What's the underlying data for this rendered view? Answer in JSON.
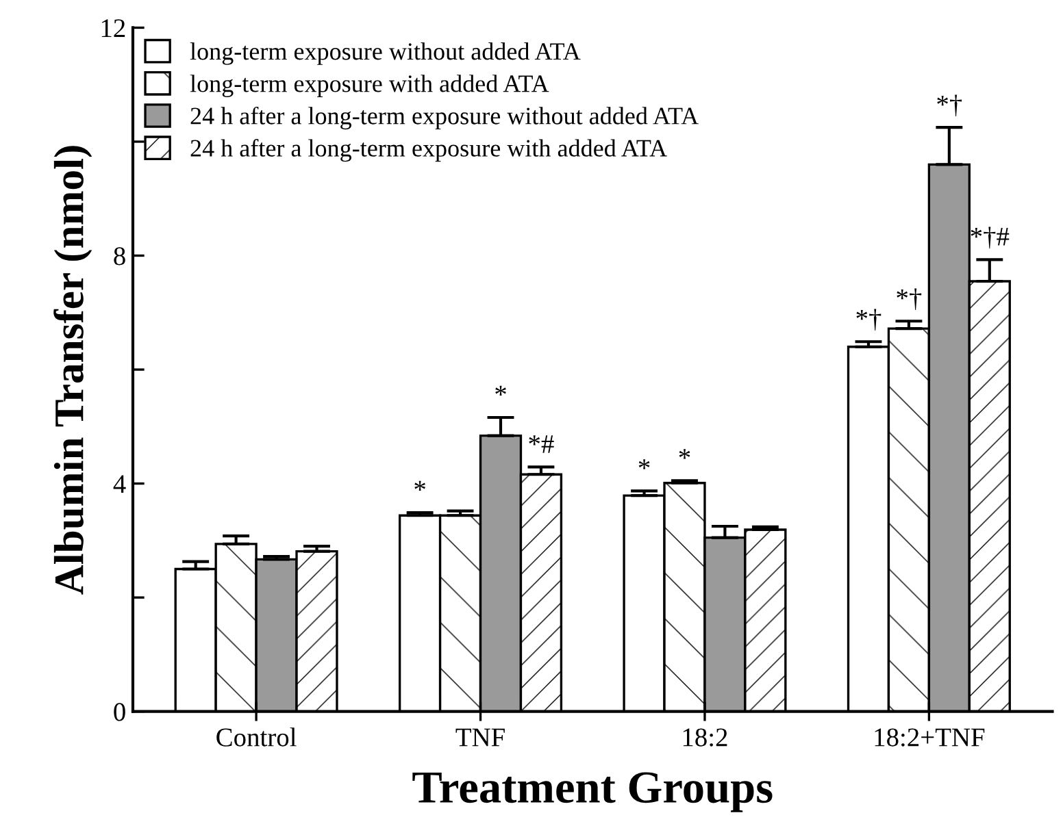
{
  "chart_data": {
    "type": "bar",
    "xlabel": "Treatment Groups",
    "ylabel": "Albumin Transfer (nmol)",
    "categories": [
      "Control",
      "TNF",
      "18:2",
      "18:2+TNF"
    ],
    "series": [
      {
        "name": "long-term exposure without added ATA",
        "color": "#ffffff",
        "values": [
          2.5,
          3.44,
          3.79,
          6.4
        ],
        "errors": [
          [
            2.5,
            2.63
          ],
          [
            3.44,
            3.49
          ],
          [
            3.79,
            3.87
          ],
          [
            6.4,
            6.49
          ]
        ],
        "value_labels": [
          null,
          "*",
          "*",
          "*†"
        ]
      },
      {
        "name": "long-term exposure with added ATA",
        "color": "#ffffff",
        "values": [
          2.94,
          3.44,
          4.01,
          6.72
        ],
        "errors": [
          [
            2.94,
            3.08
          ],
          [
            3.44,
            3.52
          ],
          [
            4.01,
            4.05
          ],
          [
            6.72,
            6.85
          ]
        ],
        "value_labels": [
          null,
          null,
          "*",
          "*†"
        ]
      },
      {
        "name": "24 h after a long-term exposure without added ATA",
        "color": "#9a9a9a",
        "values": [
          2.67,
          4.84,
          3.05,
          9.6
        ],
        "errors": [
          [
            2.67,
            2.72
          ],
          [
            4.84,
            5.16
          ],
          [
            3.05,
            3.25
          ],
          [
            9.6,
            10.25
          ]
        ],
        "value_labels": [
          null,
          "*",
          null,
          "*†"
        ]
      },
      {
        "name": "24 h after a long-term exposure with added ATA",
        "color": "#ffffff",
        "values": [
          2.81,
          4.16,
          3.19,
          7.55
        ],
        "errors": [
          [
            2.81,
            2.9
          ],
          [
            4.16,
            4.29
          ],
          [
            3.19,
            3.24
          ],
          [
            7.55,
            7.93
          ]
        ],
        "value_labels": [
          null,
          "*#",
          null,
          "*†#"
        ]
      }
    ],
    "ylim": [
      0,
      12
    ],
    "yticks": [
      0,
      {
        "value": 2,
        "label": null
      },
      4,
      {
        "value": 6,
        "label": null
      },
      8,
      {
        "value": 10,
        "label": null
      },
      12
    ],
    "grid": false,
    "legend": "top left"
  }
}
